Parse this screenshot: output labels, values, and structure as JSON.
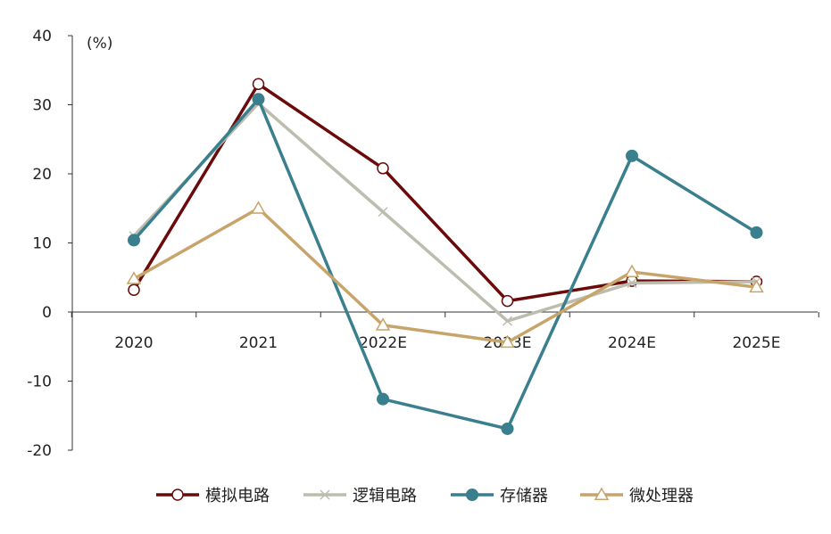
{
  "chart_data": {
    "type": "line",
    "unit_label": "(%)",
    "categories": [
      "2020",
      "2021",
      "2022E",
      "2023E",
      "2024E",
      "2025E"
    ],
    "ylim": [
      -20,
      40
    ],
    "yticks": [
      40,
      30,
      20,
      10,
      0,
      -10,
      -20
    ],
    "grid": false,
    "legend_position": "bottom",
    "series": [
      {
        "name": "模拟电路",
        "color": "#6b0a0a",
        "marker": "circle-open",
        "values": [
          3.2,
          33.0,
          20.8,
          1.6,
          4.5,
          4.4
        ]
      },
      {
        "name": "逻辑电路",
        "color": "#bdbdaf",
        "marker": "x",
        "values": [
          11.0,
          30.2,
          14.5,
          -1.3,
          4.2,
          4.4
        ]
      },
      {
        "name": "存储器",
        "color": "#3a7f8e",
        "marker": "circle-filled",
        "values": [
          10.4,
          30.8,
          -12.6,
          -16.9,
          22.6,
          11.5
        ]
      },
      {
        "name": "微处理器",
        "color": "#c7a46a",
        "marker": "triangle-open",
        "values": [
          4.8,
          15.0,
          -1.9,
          -4.4,
          5.8,
          3.6
        ]
      }
    ]
  }
}
